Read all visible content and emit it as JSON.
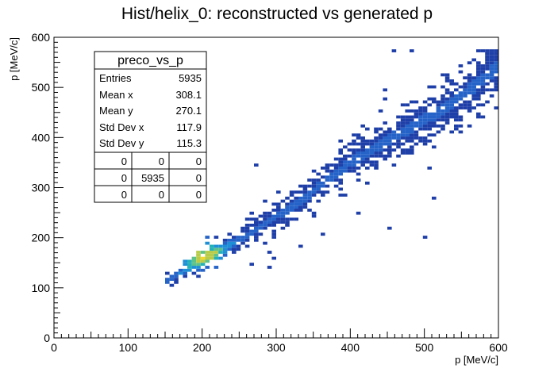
{
  "chart_data": {
    "type": "heatmap",
    "title": "Hist/helix_0: reconstructed vs generated p",
    "xlabel": "p [MeV/c]",
    "ylabel": "p [MeV/c]",
    "xlim": [
      0,
      600
    ],
    "ylim": [
      0,
      600
    ],
    "x_ticks": [
      "0",
      "100",
      "200",
      "300",
      "400",
      "500",
      "600"
    ],
    "y_ticks": [
      "0",
      "100",
      "200",
      "300",
      "400",
      "500",
      "600"
    ],
    "bin_width": 6,
    "grid": false,
    "colormap": "viridis-like (blue to yellow)",
    "palette": [
      "#1f3fa8",
      "#2563c8",
      "#1e8fd6",
      "#21b1b8",
      "#5cc28a",
      "#b9cc49",
      "#f3d82a"
    ],
    "density_model": {
      "band_points": [
        [
          150,
          110
        ],
        [
          200,
          155
        ],
        [
          260,
          205
        ],
        [
          330,
          270
        ],
        [
          400,
          350
        ],
        [
          470,
          410
        ],
        [
          540,
          470
        ],
        [
          600,
          540
        ]
      ],
      "peak_x": 195,
      "peak_y": 170
    },
    "stats_box": {
      "name": "preco_vs_p",
      "rows": [
        {
          "label": "Entries",
          "value": "5935"
        },
        {
          "label": "Mean x",
          "value": "308.1"
        },
        {
          "label": "Mean y",
          "value": "270.1"
        },
        {
          "label": "Std Dev x",
          "value": "117.9"
        },
        {
          "label": "Std Dev y",
          "value": "115.3"
        }
      ],
      "grid": [
        [
          "0",
          "0",
          "0"
        ],
        [
          "0",
          "5935",
          "0"
        ],
        [
          "0",
          "0",
          "0"
        ]
      ]
    }
  }
}
